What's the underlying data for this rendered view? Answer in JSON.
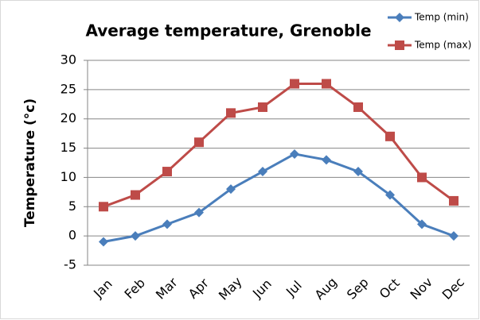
{
  "chart_data": {
    "type": "line",
    "title": "Average temperature, Grenoble",
    "y_label": "Temperature (°c)",
    "categories": [
      "Jan",
      "Feb",
      "Mar",
      "Apr",
      "May",
      "Jun",
      "Jul",
      "Aug",
      "Sep",
      "Oct",
      "Nov",
      "Dec"
    ],
    "series": [
      {
        "name": "Temp (min)",
        "color": "#4a7ebb",
        "marker": "diamond",
        "values": [
          -1,
          0,
          2,
          4,
          8,
          11,
          14,
          13,
          11,
          7,
          2,
          0
        ]
      },
      {
        "name": "Temp (max)",
        "color": "#be4b48",
        "marker": "square",
        "values": [
          5,
          7,
          11,
          16,
          21,
          22,
          26,
          26,
          22,
          17,
          10,
          6
        ]
      }
    ],
    "ylim": [
      -5,
      30
    ],
    "yticks": [
      -5,
      0,
      5,
      10,
      15,
      20,
      25,
      30
    ],
    "grid": true,
    "legend": "top-right"
  }
}
